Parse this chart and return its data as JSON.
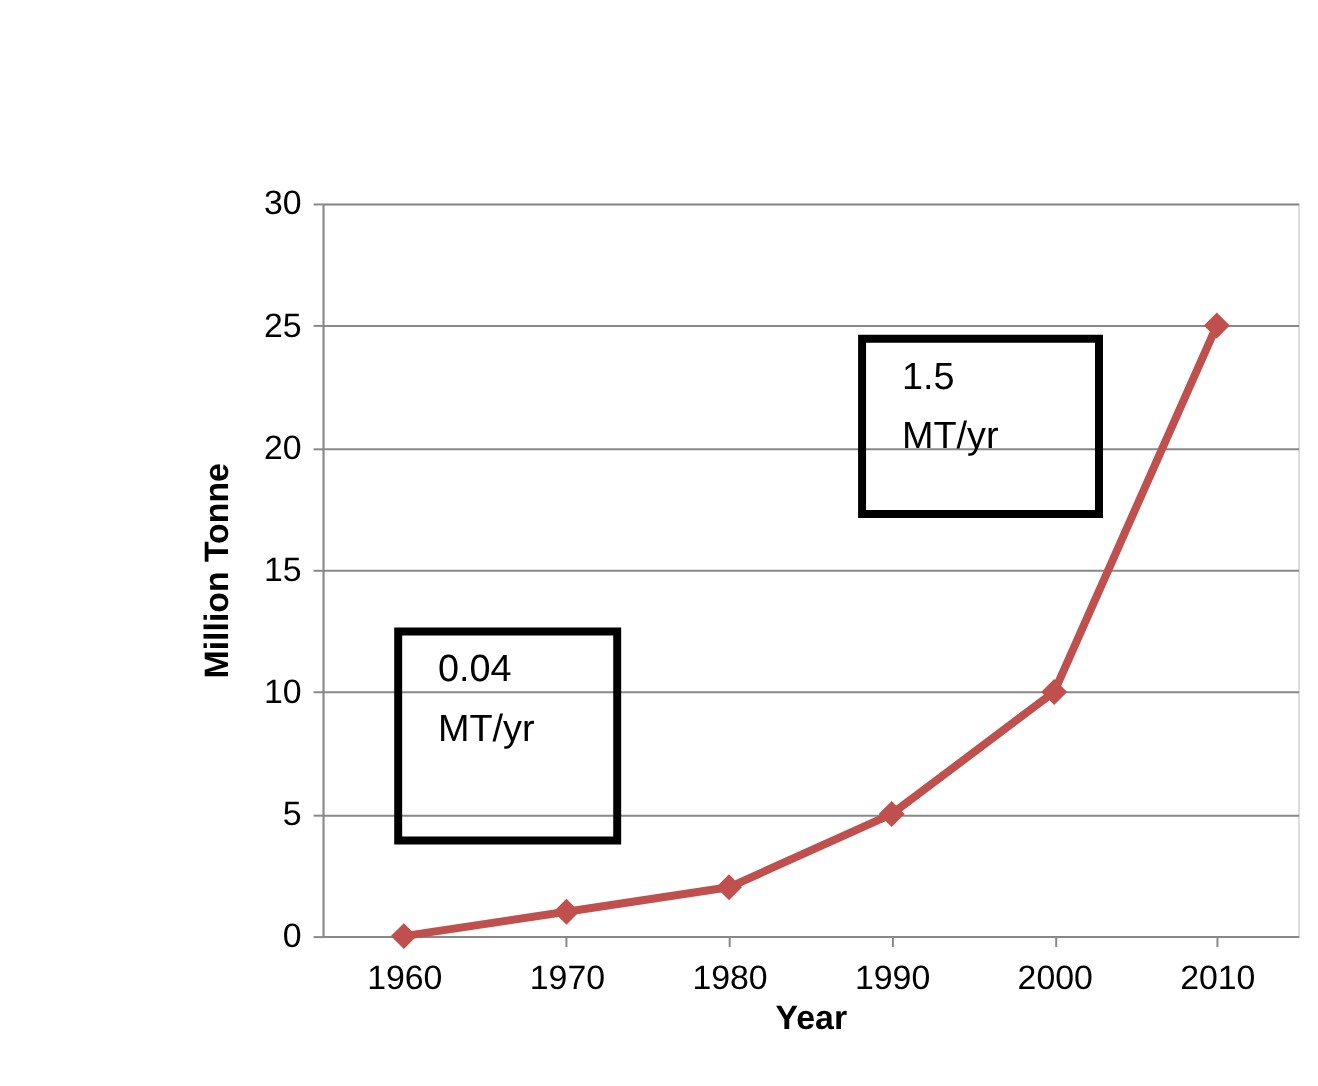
{
  "chart_data": {
    "type": "line",
    "categories": [
      "1960",
      "1970",
      "1980",
      "1990",
      "2000",
      "2010"
    ],
    "series": [
      {
        "color": "#c0504d",
        "values": [
          0,
          1,
          2,
          5,
          10,
          25
        ]
      }
    ],
    "xlabel": "Year",
    "ylabel": "Million Tonne",
    "ylim": [
      0,
      30
    ],
    "yticks": [
      0,
      5,
      10,
      15,
      20,
      25,
      30
    ],
    "grid": "y",
    "marker": "diamond",
    "line_style": "solid",
    "legend": false,
    "annotations": [
      "0.04 MT/yr",
      "1.5 MT/yr"
    ]
  }
}
